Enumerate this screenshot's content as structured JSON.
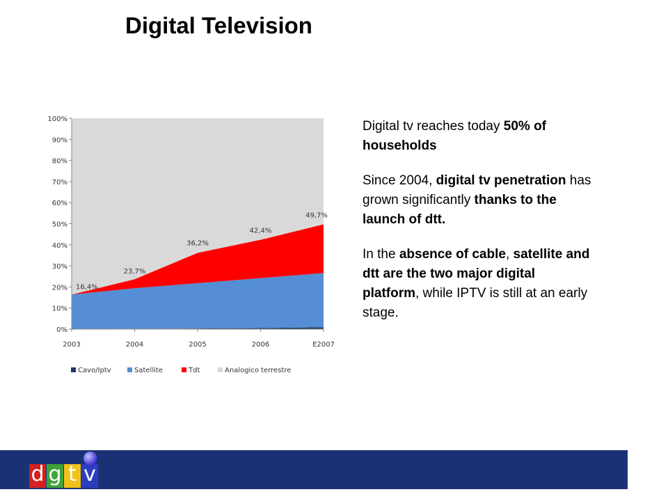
{
  "title": "Digital Television",
  "text": {
    "p1": [
      "Digital tv reaches today ",
      "50% of households"
    ],
    "p2": [
      "Since 2004, ",
      "digital tv penetration",
      " has grown significantly ",
      "thanks to the launch of dtt."
    ],
    "p3": [
      "In the ",
      "absence of cable",
      ", ",
      "satellite and dtt are the two major digital platform",
      ", while IPTV is still at an early stage."
    ]
  },
  "logo": {
    "letters": [
      "d",
      "g",
      "t",
      "v"
    ],
    "colors": [
      "#d42020",
      "#3fa33a",
      "#f2c21a",
      "#2a3fbf"
    ]
  },
  "colors": {
    "cavo": "#1f3864",
    "satellite": "#558ed5",
    "tdt": "#ff0000",
    "analogico": "#d9d9d9",
    "footer": "#1a3275"
  },
  "chart_data": {
    "type": "area",
    "stacked": true,
    "percent": true,
    "categories": [
      "2003",
      "2004",
      "2005",
      "2006",
      "E2007"
    ],
    "series": [
      {
        "name": "Cavo/Iptv",
        "values": [
          0.1,
          0.2,
          0.3,
          0.5,
          0.9
        ]
      },
      {
        "name": "Satellite",
        "values": [
          16.3,
          19.2,
          21.5,
          23.7,
          25.7
        ]
      },
      {
        "name": "Tdt",
        "values": [
          0.0,
          4.3,
          14.4,
          18.2,
          23.1
        ]
      },
      {
        "name": "Analogico terrestre",
        "values": [
          83.6,
          76.3,
          63.8,
          57.6,
          50.3
        ]
      }
    ],
    "data_labels": [
      "16,4%",
      "23,7%",
      "36,2%",
      "42,4%",
      "49,7%"
    ],
    "yticks": [
      "0%",
      "10%",
      "20%",
      "30%",
      "40%",
      "50%",
      "60%",
      "70%",
      "80%",
      "90%",
      "100%"
    ],
    "ylim": [
      0,
      100
    ],
    "legend": "bottom",
    "grid": false
  }
}
